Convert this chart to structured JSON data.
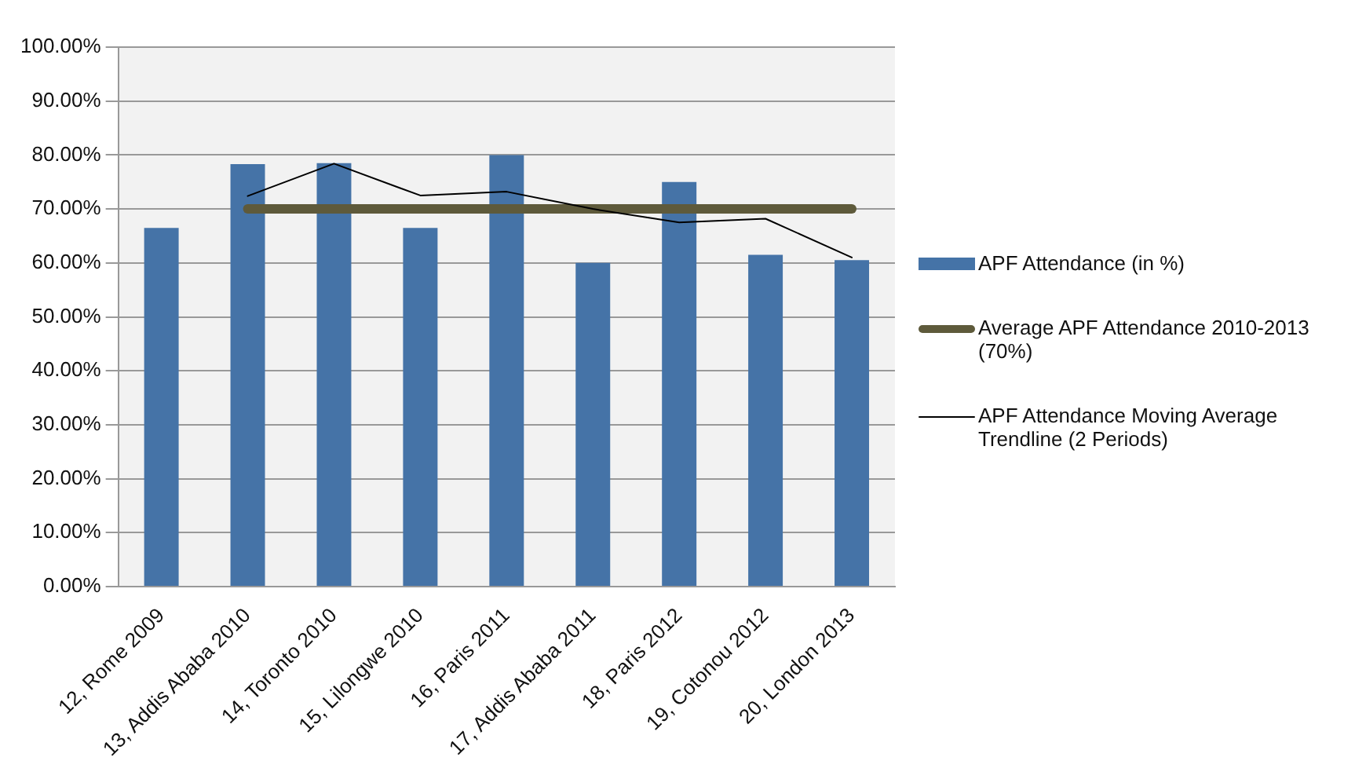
{
  "chart_data": {
    "type": "bar",
    "categories": [
      "12, Rome 2009",
      "13, Addis Ababa 2010",
      "14, Toronto 2010",
      "15, Lilongwe 2010",
      "16, Paris 2011",
      "17, Addis Ababa 2011",
      "18, Paris 2012",
      "19, Cotonou 2012",
      "20, London 2013"
    ],
    "series": [
      {
        "name": "APF Attendance (in %)",
        "color": "#4573a7",
        "values": [
          66.5,
          78.3,
          78.5,
          66.5,
          80,
          60,
          75,
          61.5,
          60.5
        ]
      },
      {
        "name": "Average APF Attendance 2010-2013 (70%)",
        "type": "line",
        "color": "#5e5a3b",
        "values": [
          null,
          70,
          70,
          70,
          70,
          70,
          70,
          70,
          70
        ]
      },
      {
        "name": "APF Attendance Moving Average Trendline (2 Periods)",
        "type": "line",
        "color": "#000000",
        "values": [
          null,
          72.4,
          78.4,
          72.5,
          73.2,
          70,
          67.5,
          68.2,
          61
        ]
      }
    ],
    "ylim": [
      0,
      100
    ],
    "yticks": [
      {
        "value": 0,
        "label": "0.00%"
      },
      {
        "value": 10,
        "label": "10.00%"
      },
      {
        "value": 20,
        "label": "20.00%"
      },
      {
        "value": 30,
        "label": "30.00%"
      },
      {
        "value": 40,
        "label": "40.00%"
      },
      {
        "value": 50,
        "label": "50.00%"
      },
      {
        "value": 60,
        "label": "60.00%"
      },
      {
        "value": 70,
        "label": "70.00%"
      },
      {
        "value": 80,
        "label": "80.00%"
      },
      {
        "value": 90,
        "label": "90.00%"
      },
      {
        "value": 100,
        "label": "100.00%"
      }
    ],
    "grid": "y",
    "legend": "right",
    "marker": "none"
  }
}
